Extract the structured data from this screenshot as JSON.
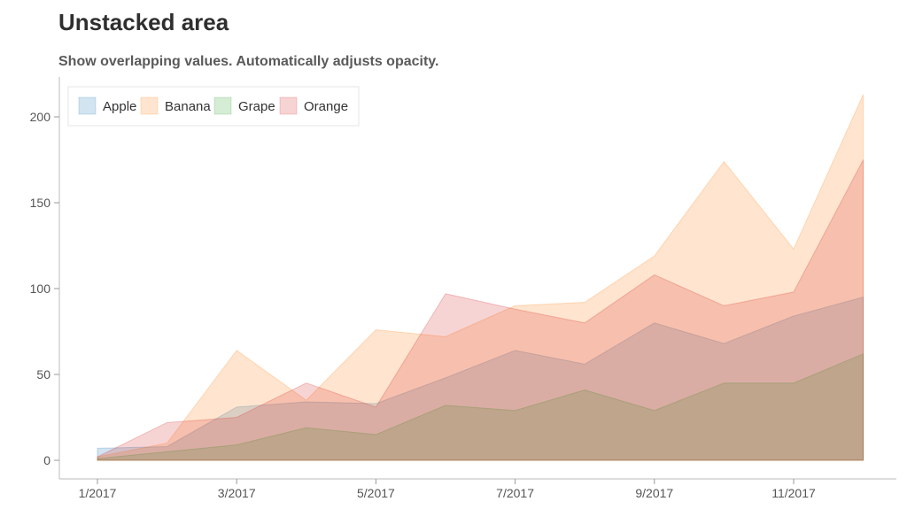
{
  "title": "Unstacked area",
  "subtitle": "Show overlapping values. Automatically adjusts opacity.",
  "chart_data": {
    "type": "area",
    "stacked": false,
    "x": [
      "1/2017",
      "2/2017",
      "3/2017",
      "4/2017",
      "5/2017",
      "6/2017",
      "7/2017",
      "8/2017",
      "9/2017",
      "10/2017",
      "11/2017",
      "12/2017"
    ],
    "x_tick_labels": [
      "1/2017",
      "3/2017",
      "5/2017",
      "7/2017",
      "9/2017",
      "11/2017"
    ],
    "y_ticks": [
      0,
      50,
      100,
      150,
      200
    ],
    "ylim": [
      0,
      220
    ],
    "legend_position": "top-left",
    "series": [
      {
        "name": "Apple",
        "color": "#1f77b4",
        "values": [
          7,
          8,
          31,
          34,
          33,
          48,
          64,
          56,
          80,
          68,
          84,
          95
        ]
      },
      {
        "name": "Banana",
        "color": "#ff7f0e",
        "values": [
          2,
          10,
          64,
          35,
          76,
          72,
          90,
          92,
          119,
          174,
          123,
          213
        ]
      },
      {
        "name": "Grape",
        "color": "#2ca02c",
        "values": [
          1,
          5,
          9,
          19,
          15,
          32,
          29,
          41,
          29,
          45,
          45,
          62
        ]
      },
      {
        "name": "Orange",
        "color": "#d62728",
        "values": [
          2,
          22,
          25,
          45,
          31,
          97,
          88,
          80,
          108,
          90,
          98,
          175
        ]
      }
    ],
    "fill_opacity": 0.2
  }
}
